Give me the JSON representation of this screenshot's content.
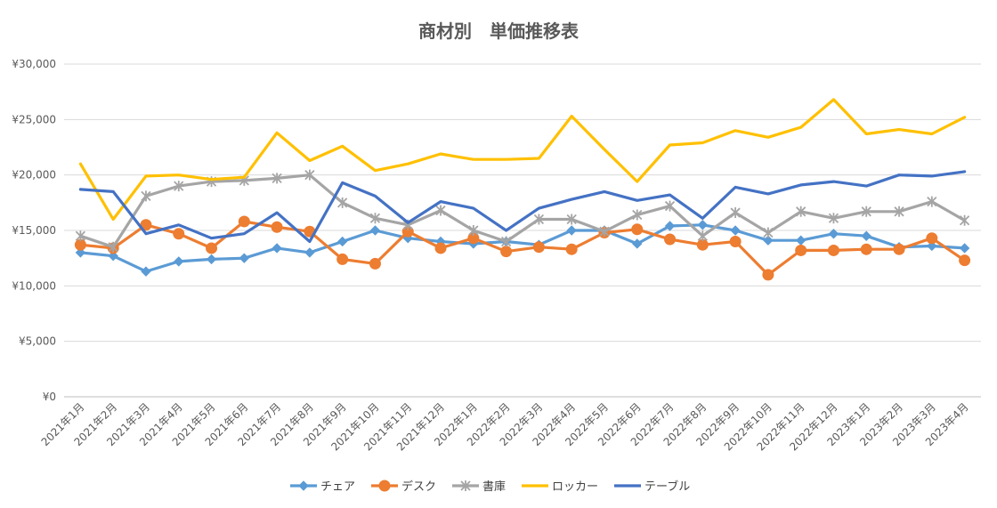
{
  "chart_data": {
    "type": "line",
    "title": "商材別　単価推移表",
    "xlabel": "",
    "ylabel": "",
    "ylim": [
      0,
      30000
    ],
    "yticks": [
      0,
      5000,
      10000,
      15000,
      20000,
      25000,
      30000
    ],
    "ytick_labels": [
      "¥0",
      "¥5,000",
      "¥10,000",
      "¥15,000",
      "¥20,000",
      "¥25,000",
      "¥30,000"
    ],
    "grid": true,
    "legend_position": "bottom",
    "categories": [
      "2021年1月",
      "2021年2月",
      "2021年3月",
      "2021年4月",
      "2021年5月",
      "2021年6月",
      "2021年7月",
      "2021年8月",
      "2021年9月",
      "2021年10月",
      "2021年11月",
      "2021年12月",
      "2022年1月",
      "2022年2月",
      "2022年3月",
      "2022年4月",
      "2022年5月",
      "2022年6月",
      "2022年7月",
      "2022年8月",
      "2022年9月",
      "2022年10月",
      "2022年11月",
      "2022年12月",
      "2023年1月",
      "2023年2月",
      "2023年3月",
      "2023年4月"
    ],
    "series": [
      {
        "name": "チェア",
        "color": "#5b9bd5",
        "marker": "diamond",
        "values": [
          13000,
          12700,
          11300,
          12200,
          12400,
          12500,
          13400,
          13000,
          14000,
          15000,
          14300,
          14000,
          13800,
          14000,
          13700,
          15000,
          15000,
          13800,
          15400,
          15500,
          15000,
          14100,
          14100,
          14700,
          14500,
          13500,
          13600,
          13400
        ]
      },
      {
        "name": "デスク",
        "color": "#ed7d31",
        "marker": "circle",
        "values": [
          13700,
          13400,
          15500,
          14700,
          13400,
          15800,
          15300,
          14900,
          12400,
          12000,
          14900,
          13400,
          14300,
          13100,
          13500,
          13300,
          14800,
          15100,
          14200,
          13700,
          14000,
          11000,
          13200,
          13200,
          13300,
          13300,
          14300,
          12300
        ]
      },
      {
        "name": "書庫",
        "color": "#a5a5a5",
        "marker": "star",
        "values": [
          14500,
          13500,
          18100,
          19000,
          19400,
          19500,
          19700,
          20000,
          17500,
          16100,
          15500,
          16800,
          15000,
          14000,
          16000,
          16000,
          14900,
          16400,
          17200,
          14500,
          16600,
          14800,
          16700,
          16100,
          16700,
          16700,
          17600,
          15900
        ]
      },
      {
        "name": "ロッカー",
        "color": "#ffc000",
        "marker": "none",
        "values": [
          21000,
          16000,
          19900,
          20000,
          19600,
          19800,
          23800,
          21300,
          22600,
          20400,
          21000,
          21900,
          21400,
          21400,
          21500,
          25300,
          22300,
          19400,
          22700,
          22900,
          24000,
          23400,
          24300,
          26800,
          23700,
          24100,
          23700,
          25200
        ]
      },
      {
        "name": "テーブル",
        "color": "#4472c4",
        "marker": "none",
        "values": [
          18700,
          18500,
          14700,
          15500,
          14300,
          14700,
          16600,
          14000,
          19300,
          18100,
          15700,
          17600,
          17000,
          15000,
          17000,
          17800,
          18500,
          17700,
          18200,
          16100,
          18900,
          18300,
          19100,
          19400,
          19000,
          20000,
          19900,
          20300
        ]
      }
    ]
  }
}
